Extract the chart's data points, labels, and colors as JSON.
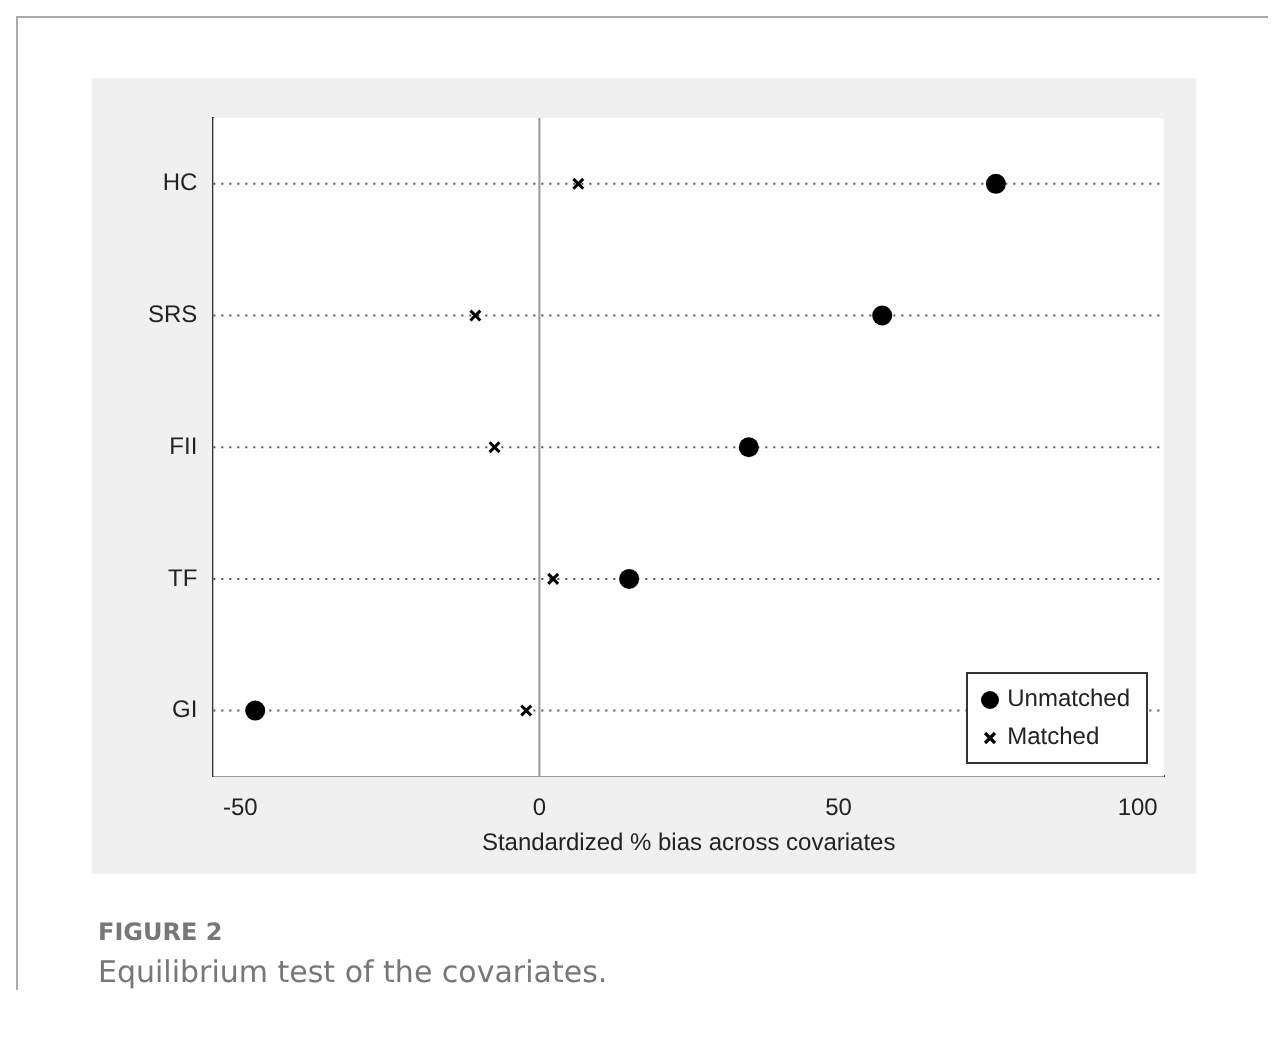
{
  "chart_data": {
    "type": "scatter",
    "orientation": "horizontal",
    "categories": [
      "HC",
      "SRS",
      "FII",
      "TF",
      "GI"
    ],
    "series": [
      {
        "name": "Unmatched",
        "color": "#000000",
        "marker": "circle",
        "values": [
          76.3,
          57.3,
          35,
          15,
          -47.5
        ]
      },
      {
        "name": "Matched",
        "color": "#000000",
        "marker": "cross",
        "values": [
          6.5,
          -10.7,
          -7.5,
          2.3,
          -2.2
        ]
      }
    ],
    "xlabel": "Standardized % bias across covariates",
    "xlim": [
      -54.5,
      104.4
    ],
    "xticks": [
      -50,
      0,
      50,
      100
    ],
    "ref_lines": [
      {
        "axis": "x",
        "value": 0,
        "color": "#999999"
      }
    ],
    "grid": "y",
    "line_style": "dotted",
    "legend": "bottom right",
    "annotations": [
      "FIGURE 2",
      "Equilibrium test of the covariates."
    ]
  }
}
